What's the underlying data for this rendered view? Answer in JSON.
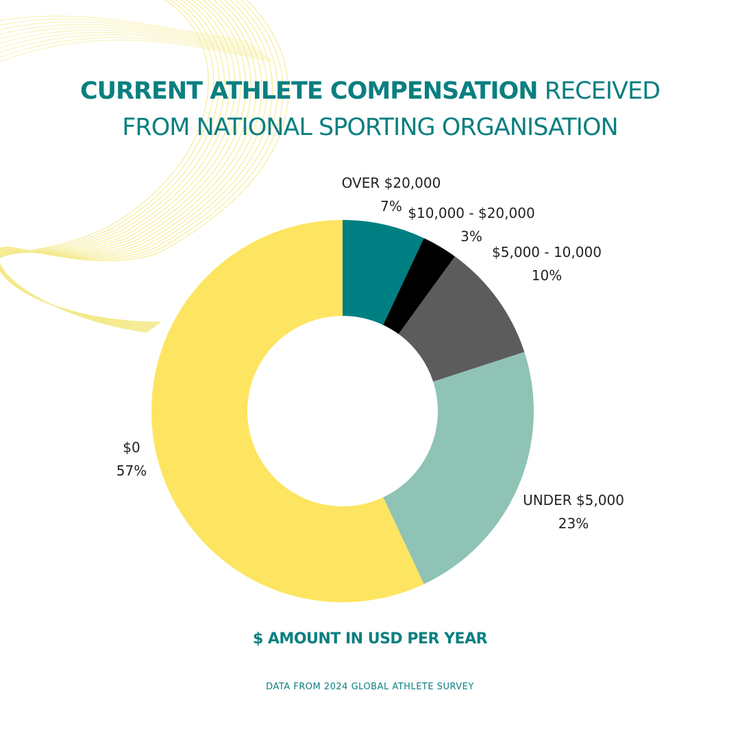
{
  "title": {
    "bold": "CURRENT ATHLETE COMPENSATION",
    "regular": "RECEIVED",
    "line2": "FROM NATIONAL SPORTING ORGANISATION"
  },
  "unit_label": "$ AMOUNT IN USD PER YEAR",
  "source": "DATA FROM 2024 GLOBAL ATHLETE SURVEY",
  "colors": {
    "accent": "#0a7f80",
    "decoration": "#f4e98a"
  },
  "chart_data": {
    "type": "pie",
    "donut": true,
    "slices": [
      {
        "label": "OVER $20,000",
        "value": 7,
        "display": "7%",
        "color": "#007f82"
      },
      {
        "label": "$10,000 - $20,000",
        "value": 3,
        "display": "3%",
        "color": "#000000"
      },
      {
        "label": "$5,000 - 10,000",
        "value": 10,
        "display": "10%",
        "color": "#5c5c5c"
      },
      {
        "label": "UNDER $5,000",
        "value": 23,
        "display": "23%",
        "color": "#8fc3b6"
      },
      {
        "label": "$0",
        "value": 57,
        "display": "57%",
        "color": "#fde561"
      }
    ]
  }
}
